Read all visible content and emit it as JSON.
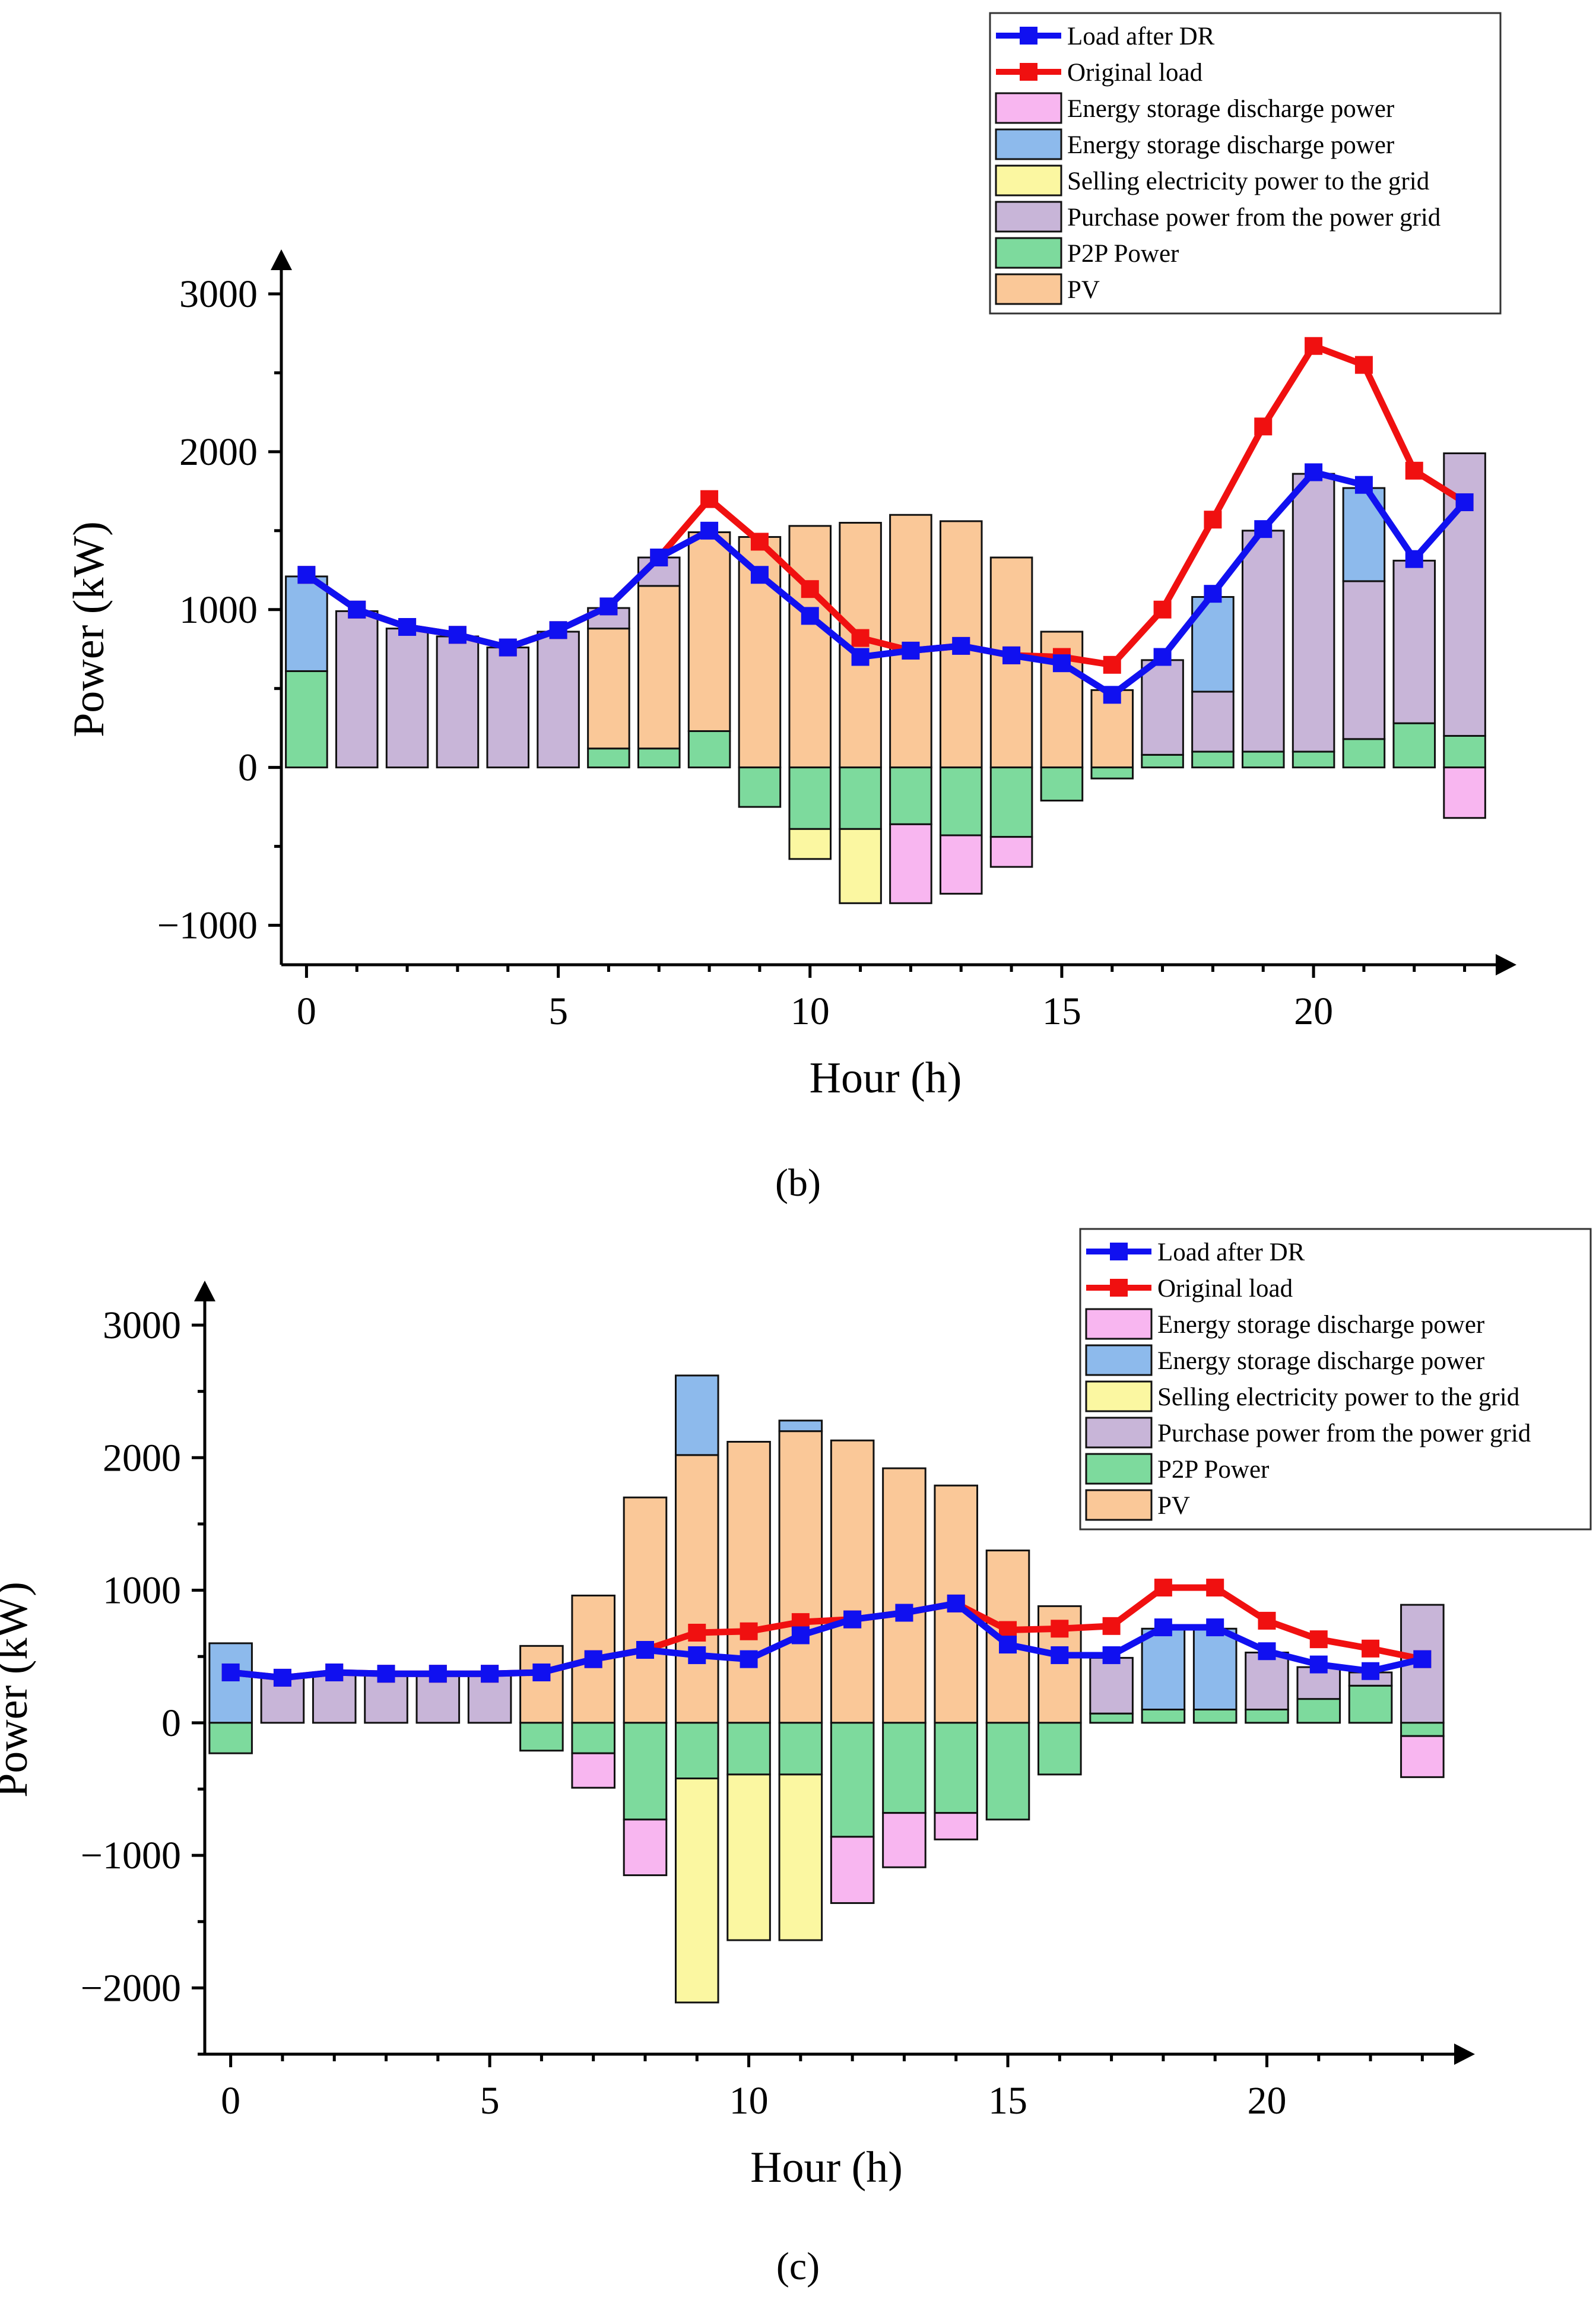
{
  "colors": {
    "pv": "#FAC898",
    "p2p": "#7DDA9D",
    "purchase": "#C8B5D8",
    "sell": "#FBF7A1",
    "es_blue": "#8DBAEC",
    "es_pink": "#F8B6F0",
    "load_after": "#1010F0",
    "original": "#F01010"
  },
  "legend_labels": {
    "load_after": "Load after DR",
    "original": "Original load",
    "es_pink": "Energy storage discharge power",
    "es_blue": "Energy storage discharge power",
    "sell": "Selling electricity power to the grid",
    "purchase": "Purchase power from the power grid",
    "p2p": "P2P Power",
    "pv": "PV"
  },
  "chart_data": [
    {
      "id": "b",
      "caption": "(b)",
      "type": "bar",
      "xlabel": "Hour (h)",
      "ylabel": "Power (kW)",
      "xlim": [
        -0.5,
        23.5
      ],
      "ylim": [
        -1250,
        3000
      ],
      "xticks": [
        0,
        5,
        10,
        15,
        20
      ],
      "yticks": [
        -1000,
        0,
        1000,
        2000,
        3000
      ],
      "hours": [
        0,
        1,
        2,
        3,
        4,
        5,
        6,
        7,
        8,
        9,
        10,
        11,
        12,
        13,
        14,
        15,
        16,
        17,
        18,
        19,
        20,
        21,
        22,
        23
      ],
      "pv": [
        0,
        0,
        0,
        0,
        0,
        0,
        760,
        1030,
        1260,
        1460,
        1530,
        1550,
        1600,
        1560,
        1330,
        860,
        490,
        0,
        0,
        0,
        0,
        0,
        0,
        0
      ],
      "p2p_pos": [
        610,
        0,
        0,
        0,
        0,
        0,
        120,
        120,
        230,
        0,
        0,
        0,
        0,
        0,
        0,
        0,
        0,
        80,
        100,
        100,
        100,
        180,
        280,
        200
      ],
      "purchase": [
        0,
        990,
        880,
        830,
        760,
        860,
        130,
        180,
        0,
        0,
        0,
        0,
        0,
        0,
        0,
        0,
        0,
        600,
        380,
        1400,
        1760,
        1000,
        1030,
        1790
      ],
      "es_blue_pos": [
        600,
        0,
        0,
        0,
        0,
        0,
        0,
        0,
        0,
        0,
        0,
        0,
        0,
        0,
        0,
        0,
        0,
        0,
        600,
        0,
        0,
        590,
        0,
        0
      ],
      "p2p_neg": [
        0,
        0,
        0,
        0,
        0,
        0,
        0,
        0,
        0,
        250,
        390,
        390,
        360,
        430,
        440,
        210,
        70,
        0,
        0,
        0,
        0,
        0,
        0,
        0
      ],
      "sell_neg": [
        0,
        0,
        0,
        0,
        0,
        0,
        0,
        0,
        0,
        0,
        190,
        470,
        0,
        0,
        0,
        0,
        0,
        0,
        0,
        0,
        0,
        0,
        0,
        0
      ],
      "es_pink_neg": [
        0,
        0,
        0,
        0,
        0,
        0,
        0,
        0,
        0,
        0,
        0,
        0,
        500,
        370,
        190,
        0,
        0,
        0,
        0,
        0,
        0,
        0,
        0,
        320
      ],
      "series": [
        {
          "name": "Load after DR",
          "values": [
            1220,
            1000,
            890,
            840,
            760,
            870,
            1020,
            1330,
            1500,
            1220,
            960,
            700,
            740,
            770,
            710,
            660,
            460,
            700,
            1100,
            1510,
            1870,
            1790,
            1320,
            1680
          ]
        },
        {
          "name": "Original load",
          "values": [
            1220,
            1000,
            890,
            840,
            760,
            870,
            1020,
            1330,
            1700,
            1430,
            1130,
            820,
            740,
            770,
            710,
            700,
            650,
            1000,
            1570,
            2160,
            2670,
            2550,
            1880,
            1680
          ]
        }
      ]
    },
    {
      "id": "c",
      "caption": "(c)",
      "type": "bar",
      "xlabel": "Hour (h)",
      "ylabel": "Power (kW)",
      "xlim": [
        -0.5,
        23.5
      ],
      "ylim": [
        -2500,
        3000
      ],
      "xticks": [
        0,
        5,
        10,
        15,
        20
      ],
      "yticks": [
        -2000,
        -1000,
        0,
        1000,
        2000,
        3000
      ],
      "hours": [
        0,
        1,
        2,
        3,
        4,
        5,
        6,
        7,
        8,
        9,
        10,
        11,
        12,
        13,
        14,
        15,
        16,
        17,
        18,
        19,
        20,
        21,
        22,
        23
      ],
      "pv": [
        0,
        0,
        0,
        0,
        0,
        0,
        580,
        960,
        1700,
        2020,
        2120,
        2200,
        2130,
        1920,
        1790,
        1300,
        880,
        0,
        0,
        0,
        0,
        0,
        0,
        0
      ],
      "p2p_pos": [
        0,
        0,
        0,
        0,
        0,
        0,
        0,
        0,
        0,
        0,
        0,
        0,
        0,
        0,
        0,
        0,
        0,
        70,
        100,
        100,
        100,
        180,
        280,
        0
      ],
      "purchase": [
        0,
        360,
        380,
        370,
        370,
        370,
        0,
        0,
        0,
        0,
        0,
        0,
        0,
        0,
        0,
        0,
        0,
        420,
        0,
        0,
        430,
        240,
        100,
        890
      ],
      "es_blue_pos": [
        600,
        0,
        0,
        0,
        0,
        0,
        0,
        0,
        0,
        600,
        0,
        80,
        0,
        0,
        0,
        0,
        0,
        0,
        610,
        610,
        0,
        0,
        0,
        0
      ],
      "p2p_neg": [
        230,
        0,
        0,
        0,
        0,
        0,
        210,
        230,
        730,
        420,
        390,
        390,
        860,
        680,
        680,
        730,
        390,
        0,
        0,
        0,
        0,
        0,
        0,
        100
      ],
      "sell_neg": [
        0,
        0,
        0,
        0,
        0,
        0,
        0,
        0,
        0,
        1690,
        1250,
        1250,
        0,
        0,
        0,
        0,
        0,
        0,
        0,
        0,
        0,
        0,
        0,
        0
      ],
      "es_pink_neg": [
        0,
        0,
        0,
        0,
        0,
        0,
        0,
        260,
        420,
        0,
        0,
        0,
        500,
        410,
        200,
        0,
        0,
        0,
        0,
        0,
        0,
        0,
        0,
        310
      ],
      "series": [
        {
          "name": "Load after DR",
          "values": [
            380,
            340,
            380,
            370,
            370,
            370,
            380,
            480,
            550,
            510,
            480,
            660,
            780,
            830,
            900,
            590,
            510,
            510,
            720,
            720,
            540,
            440,
            390,
            480
          ]
        },
        {
          "name": "Original load",
          "values": [
            380,
            340,
            380,
            370,
            370,
            370,
            380,
            480,
            550,
            680,
            690,
            760,
            780,
            830,
            900,
            700,
            710,
            730,
            1020,
            1020,
            770,
            630,
            560,
            480
          ]
        }
      ]
    }
  ]
}
